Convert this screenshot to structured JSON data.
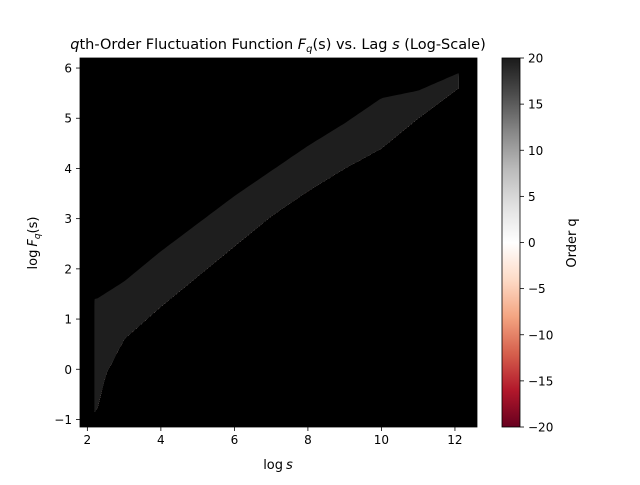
{
  "chart_data": {
    "type": "heatmap",
    "title_prefix": "q",
    "title_main": "th-Order Fluctuation Function ",
    "title_F": "F",
    "title_q_sub": "q",
    "title_mid": "(s) vs. Lag ",
    "title_s": "s",
    "title_suffix": " (Log-Scale)",
    "xlabel_log": "log",
    "xlabel_var": "s",
    "ylabel_log": "log",
    "ylabel_F": "F",
    "ylabel_sub": "q",
    "ylabel_tail": "(s)",
    "xlim": [
      1.8,
      12.6
    ],
    "ylim": [
      -1.15,
      6.2
    ],
    "x_ticks": [
      2,
      4,
      6,
      8,
      10,
      12
    ],
    "y_ticks": [
      -1,
      0,
      1,
      2,
      3,
      4,
      5,
      6
    ],
    "x_tick_labels": [
      "2",
      "4",
      "6",
      "8",
      "10",
      "12"
    ],
    "y_tick_labels": [
      "−1",
      "0",
      "1",
      "2",
      "3",
      "4",
      "5",
      "6"
    ],
    "background_color": "#000000",
    "colorbar": {
      "label": "Order q",
      "range": [
        -20,
        20
      ],
      "ticks": [
        20,
        15,
        10,
        5,
        0,
        -5,
        -10,
        -15,
        -20
      ],
      "tick_labels": [
        "20",
        "15",
        "10",
        "5",
        "0",
        "−5",
        "−10",
        "−15",
        "−20"
      ],
      "colormap": "RdGy",
      "stops": [
        "#67001f",
        "#b2182b",
        "#d6604d",
        "#f4a582",
        "#fddbc7",
        "#ffffff",
        "#e0e0e0",
        "#bababa",
        "#878787",
        "#4d4d4d",
        "#1a1a1a"
      ]
    },
    "x_range": [
      2.2,
      12.1
    ],
    "band_q_minus20": {
      "x": [
        2.25,
        2.5,
        3,
        4,
        5,
        6,
        7,
        8,
        9,
        10,
        11,
        12.1
      ],
      "y": [
        -0.85,
        -0.1,
        0.6,
        1.25,
        1.85,
        2.45,
        3.05,
        3.55,
        4.0,
        4.4,
        5.0,
        5.6
      ]
    },
    "band_q_0": {
      "x": [
        2.25,
        3,
        4,
        5,
        6,
        7,
        8,
        9,
        10,
        11,
        12.1
      ],
      "y": [
        0.85,
        1.2,
        1.75,
        2.3,
        2.85,
        3.35,
        3.85,
        4.3,
        4.75,
        5.3,
        5.7
      ]
    },
    "band_q_plus20": {
      "x": [
        2.25,
        3,
        4,
        5,
        6,
        7,
        8,
        9,
        10,
        11,
        12.1
      ],
      "y": [
        1.4,
        1.75,
        2.35,
        2.9,
        3.45,
        3.95,
        4.45,
        4.9,
        5.4,
        5.55,
        5.9
      ]
    }
  }
}
